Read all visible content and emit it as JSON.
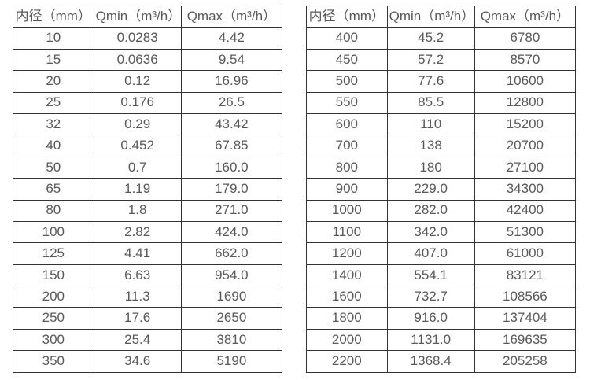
{
  "page": {
    "background_color": "#ffffff",
    "text_color": "#595959",
    "border_color": "#333333"
  },
  "tables": [
    {
      "name": "flow-range-table-small-diameters",
      "headers": [
        "内径（mm）",
        "Qmin（m³/h）",
        "Qmax（m³/h）"
      ],
      "rows": [
        [
          "10",
          "0.0283",
          "4.42"
        ],
        [
          "15",
          "0.0636",
          "9.54"
        ],
        [
          "20",
          "0.12",
          "16.96"
        ],
        [
          "25",
          "0.176",
          "26.5"
        ],
        [
          "32",
          "0.29",
          "43.42"
        ],
        [
          "40",
          "0.452",
          "67.85"
        ],
        [
          "50",
          "0.7",
          "160.0"
        ],
        [
          "65",
          "1.19",
          "179.0"
        ],
        [
          "80",
          "1.8",
          "271.0"
        ],
        [
          "100",
          "2.82",
          "424.0"
        ],
        [
          "125",
          "4.41",
          "662.0"
        ],
        [
          "150",
          "6.63",
          "954.0"
        ],
        [
          "200",
          "11.3",
          "1690"
        ],
        [
          "250",
          "17.6",
          "2650"
        ],
        [
          "300",
          "25.4",
          "3810"
        ],
        [
          "350",
          "34.6",
          "5190"
        ]
      ]
    },
    {
      "name": "flow-range-table-large-diameters",
      "headers": [
        "内径（mm）",
        "Qmin（m³/h）",
        "Qmax（m³/h）"
      ],
      "rows": [
        [
          "400",
          "45.2",
          "6780"
        ],
        [
          "450",
          "57.2",
          "8570"
        ],
        [
          "500",
          "77.6",
          "10600"
        ],
        [
          "550",
          "85.5",
          "12800"
        ],
        [
          "600",
          "110",
          "15200"
        ],
        [
          "700",
          "138",
          "20700"
        ],
        [
          "800",
          "180",
          "27100"
        ],
        [
          "900",
          "229.0",
          "34300"
        ],
        [
          "1000",
          "282.0",
          "42400"
        ],
        [
          "1100",
          "342.0",
          "51300"
        ],
        [
          "1200",
          "407.0",
          "61000"
        ],
        [
          "1400",
          "554.1",
          "83121"
        ],
        [
          "1600",
          "732.7",
          "108566"
        ],
        [
          "1800",
          "916.0",
          "137404"
        ],
        [
          "2000",
          "1131.0",
          "169635"
        ],
        [
          "2200",
          "1368.4",
          "205258"
        ]
      ]
    }
  ]
}
